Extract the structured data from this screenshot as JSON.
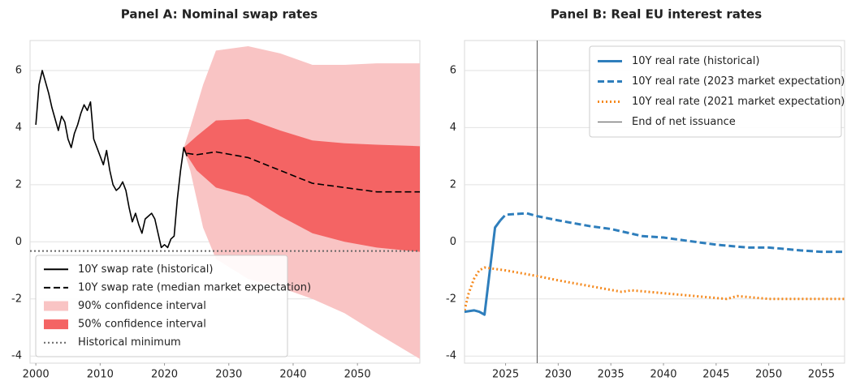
{
  "chart_data": [
    {
      "type": "line",
      "title": "Panel A: Nominal swap rates",
      "xlim": [
        1999.1,
        2059.7
      ],
      "ylim": [
        -4.25,
        7.05
      ],
      "xticks": [
        2000,
        2010,
        2020,
        2030,
        2040,
        2050
      ],
      "yticks": [
        -4,
        -2,
        0,
        2,
        4,
        6
      ],
      "grid": true,
      "legend": "lower left",
      "series": [
        {
          "name": "10Y swap rate (historical)",
          "color": "#000000",
          "style": "solid",
          "x": [
            2000,
            2000.5,
            2001,
            2001.5,
            2002,
            2002.5,
            2003,
            2003.5,
            2004,
            2004.5,
            2005,
            2005.5,
            2006,
            2006.5,
            2007,
            2007.5,
            2008,
            2008.5,
            2009,
            2009.5,
            2010,
            2010.5,
            2011,
            2011.5,
            2012,
            2012.5,
            2013,
            2013.5,
            2014,
            2014.5,
            2015,
            2015.5,
            2016,
            2016.5,
            2017,
            2017.5,
            2018,
            2018.5,
            2019,
            2019.5,
            2020,
            2020.5,
            2021,
            2021.5,
            2022,
            2022.5,
            2023,
            2023.5
          ],
          "values": [
            4.1,
            5.5,
            6.0,
            5.6,
            5.2,
            4.7,
            4.3,
            3.9,
            4.4,
            4.2,
            3.6,
            3.3,
            3.8,
            4.1,
            4.5,
            4.8,
            4.6,
            4.9,
            3.6,
            3.3,
            3.0,
            2.7,
            3.2,
            2.5,
            2.0,
            1.8,
            1.9,
            2.1,
            1.8,
            1.2,
            0.7,
            1.0,
            0.6,
            0.3,
            0.8,
            0.9,
            1.0,
            0.8,
            0.3,
            -0.2,
            -0.1,
            -0.2,
            0.1,
            0.2,
            1.5,
            2.5,
            3.3,
            3.0
          ]
        },
        {
          "name": "10Y swap rate (median market expectation)",
          "color": "#000000",
          "style": "dashed",
          "x": [
            2023.5,
            2025,
            2028,
            2033,
            2038,
            2043,
            2048,
            2053,
            2059.7
          ],
          "values": [
            3.1,
            3.05,
            3.15,
            2.95,
            2.5,
            2.05,
            1.9,
            1.75,
            1.75
          ]
        }
      ],
      "bands": [
        {
          "name": "90% confidence interval",
          "color": "#f9c4c4",
          "x": [
            2023,
            2024,
            2026,
            2028,
            2033,
            2038,
            2043,
            2048,
            2053,
            2059.7
          ],
          "lower": [
            3.2,
            2.5,
            0.5,
            -0.6,
            -1.3,
            -1.6,
            -2.0,
            -2.5,
            -3.2,
            -4.1
          ],
          "upper": [
            3.3,
            4.0,
            5.5,
            6.7,
            6.85,
            6.6,
            6.2,
            6.2,
            6.25,
            6.25
          ]
        },
        {
          "name": "50% confidence interval",
          "color": "#f46464",
          "x": [
            2023,
            2025,
            2028,
            2033,
            2038,
            2043,
            2048,
            2053,
            2059.7
          ],
          "lower": [
            3.2,
            2.5,
            1.9,
            1.6,
            0.9,
            0.3,
            0.0,
            -0.2,
            -0.35
          ],
          "upper": [
            3.3,
            3.7,
            4.25,
            4.3,
            3.9,
            3.55,
            3.45,
            3.4,
            3.35
          ]
        }
      ],
      "hlines": [
        {
          "name": "Historical minimum",
          "value": -0.32,
          "color": "#666666",
          "style": "dotted"
        }
      ]
    },
    {
      "type": "line",
      "title": "Panel B: Real EU interest rates",
      "xlim": [
        2021.1,
        2057.2
      ],
      "ylim": [
        -4.25,
        7.05
      ],
      "xticks": [
        2025,
        2030,
        2035,
        2040,
        2045,
        2050,
        2055
      ],
      "yticks": [
        -4,
        -2,
        0,
        2,
        4,
        6
      ],
      "grid": true,
      "legend": "upper right",
      "series": [
        {
          "name": "10Y real rate (historical)",
          "color": "#2e7ebc",
          "style": "solid",
          "x": [
            2021.1,
            2022,
            2022.5,
            2023,
            2024,
            2024.5
          ],
          "values": [
            -2.45,
            -2.4,
            -2.45,
            -2.55,
            0.5,
            0.75
          ]
        },
        {
          "name": "10Y real rate (2023 market expectation)",
          "color": "#2e7ebc",
          "style": "dashed",
          "x": [
            2024.5,
            2025,
            2027,
            2028,
            2030,
            2033,
            2035,
            2038,
            2040,
            2043,
            2045,
            2048,
            2050,
            2053,
            2055,
            2057.2
          ],
          "values": [
            0.75,
            0.95,
            1.0,
            0.9,
            0.75,
            0.55,
            0.45,
            0.2,
            0.15,
            0.0,
            -0.1,
            -0.2,
            -0.2,
            -0.3,
            -0.35,
            -0.35
          ]
        },
        {
          "name": "10Y real rate (2021 market expectation)",
          "color": "#f58a1f",
          "style": "dotted",
          "x": [
            2021.1,
            2021.5,
            2022,
            2022.5,
            2023,
            2025,
            2028,
            2030,
            2033,
            2036,
            2037,
            2040,
            2043,
            2046,
            2047,
            2050,
            2053,
            2057.2
          ],
          "values": [
            -2.4,
            -1.8,
            -1.3,
            -1.0,
            -0.9,
            -1.0,
            -1.2,
            -1.35,
            -1.55,
            -1.75,
            -1.7,
            -1.8,
            -1.9,
            -2.0,
            -1.9,
            -2.0,
            -2.0,
            -2.0
          ]
        }
      ],
      "vlines": [
        {
          "name": "End of net issuance",
          "value": 2028,
          "color": "#555555"
        }
      ]
    }
  ]
}
